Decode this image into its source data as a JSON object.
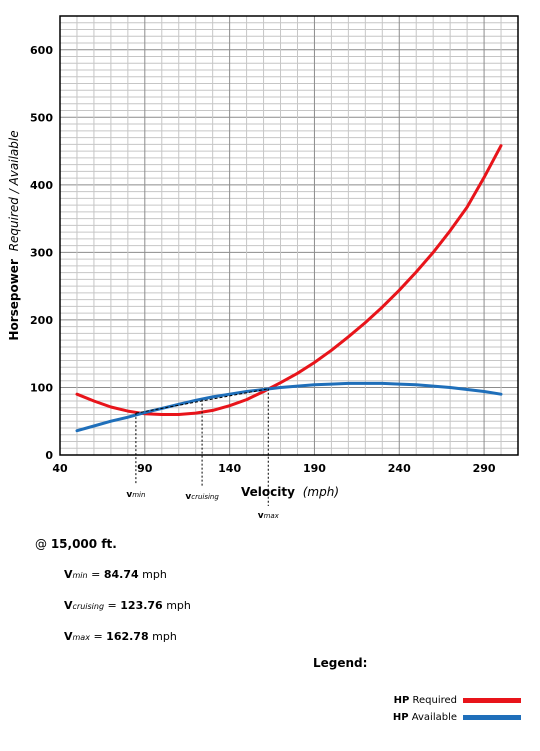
{
  "chart_data": {
    "type": "line",
    "xlabel_bold": "Velocity",
    "xlabel_italic": "(mph)",
    "ylabel_bold": "Horsepower",
    "ylabel_italic": "Required / Available",
    "xlim": [
      40,
      310
    ],
    "ylim": [
      0,
      650
    ],
    "xticks": [
      40,
      90,
      140,
      190,
      240,
      290
    ],
    "yticks": [
      0,
      100,
      200,
      300,
      400,
      500,
      600
    ],
    "grid": true,
    "series": [
      {
        "name": "HP Required",
        "color": "#e8141a",
        "x": [
          50,
          60,
          70,
          80,
          90,
          100,
          110,
          120,
          130,
          140,
          150,
          160,
          170,
          180,
          190,
          200,
          210,
          220,
          230,
          240,
          250,
          260,
          270,
          280,
          290,
          300
        ],
        "y": [
          90,
          80,
          71,
          65,
          61,
          60,
          60,
          62,
          66,
          73,
          82,
          94,
          107,
          121,
          137,
          155,
          175,
          196,
          219,
          244,
          271,
          300,
          332,
          367,
          411,
          458
        ]
      },
      {
        "name": "HP Available",
        "color": "#1f6fba",
        "x": [
          50,
          60,
          70,
          80,
          90,
          100,
          110,
          120,
          130,
          140,
          150,
          160,
          170,
          180,
          190,
          200,
          210,
          220,
          230,
          240,
          250,
          260,
          270,
          280,
          290,
          300
        ],
        "y": [
          36,
          43,
          50,
          56,
          63,
          69,
          75,
          81,
          86,
          90,
          94,
          97,
          100,
          102,
          104,
          105,
          106,
          106,
          106,
          105,
          104,
          102,
          100,
          97,
          94,
          90
        ]
      }
    ],
    "markers": [
      {
        "label": "v",
        "sub": "min",
        "x": 84.74,
        "y": 62
      },
      {
        "label": "v",
        "sub": "cruising",
        "x": 123.76,
        "y": 82
      },
      {
        "label": "v",
        "sub": "max",
        "x": 162.78,
        "y": 98
      }
    ]
  },
  "altitude_prefix": "@",
  "altitude_value": "15,000 ft.",
  "notes": [
    {
      "v": "V",
      "sub": "min",
      "eq": "=",
      "value": "84.74",
      "unit": "mph"
    },
    {
      "v": "V",
      "sub": "cruising",
      "eq": "=",
      "value": "123.76",
      "unit": "mph"
    },
    {
      "v": "V",
      "sub": "max",
      "eq": "=",
      "value": "162.78",
      "unit": "mph"
    }
  ],
  "legend": {
    "title": "Legend:",
    "items": [
      {
        "bold": "HP",
        "text": "Required",
        "color": "#e8141a"
      },
      {
        "bold": "HP",
        "text": "Available",
        "color": "#1f6fba"
      }
    ]
  }
}
